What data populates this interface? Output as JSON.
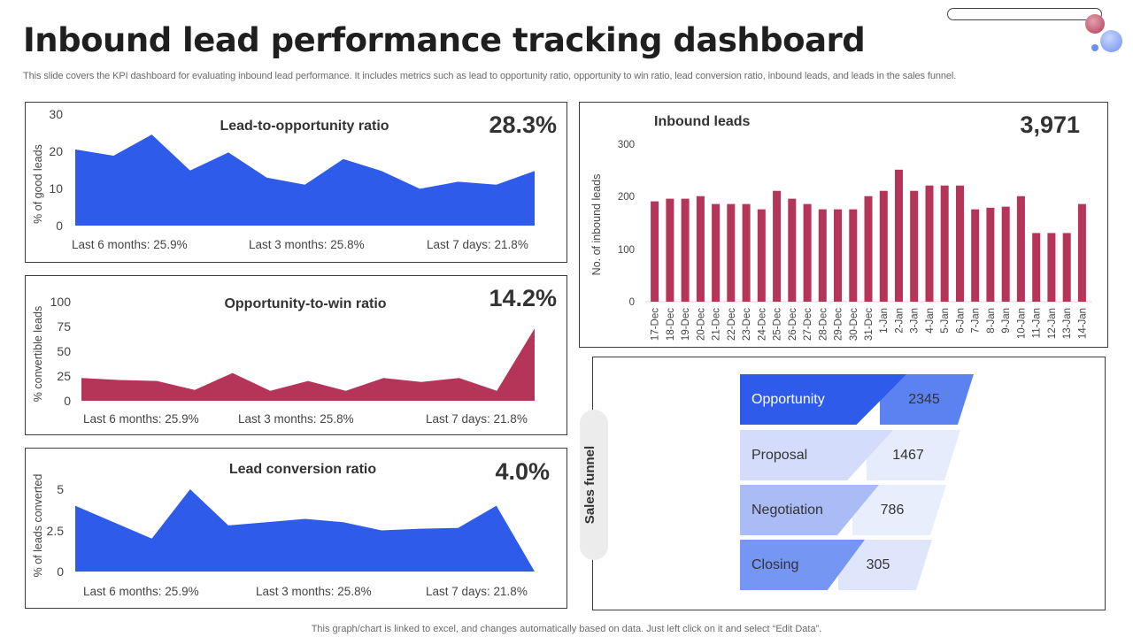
{
  "page": {
    "title": "Inbound lead performance tracking dashboard",
    "subtitle": "This slide covers the KPI dashboard for evaluating inbound lead performance. It includes metrics such as lead to opportunity ratio, opportunity to  win ratio, lead conversion ratio, inbound leads, and leads in the sales funnel.",
    "footer": "This graph/chart is linked to excel,  and changes automatically based on data. Just left click on it and select “Edit Data”."
  },
  "colors": {
    "blue": "#2e5bea",
    "crimson": "#b43557"
  },
  "chart_data": [
    {
      "id": "lead_to_opportunity",
      "type": "area",
      "title": "Lead-to-opportunity ratio",
      "kpi": "28.3%",
      "ylabel": "% of good leads",
      "ylim": [
        0,
        30
      ],
      "yticks": [
        "30",
        "20",
        "10",
        "0"
      ],
      "values": [
        20.5,
        18.8,
        24.5,
        14.8,
        19.7,
        12.9,
        11.0,
        17.9,
        14.7,
        9.9,
        11.8,
        11.0,
        14.7
      ],
      "color": "#2e5bea",
      "footnotes": [
        "Last 6 months: 25.9%",
        "Last 3 months: 25.8%",
        "Last 7 days: 21.8%"
      ]
    },
    {
      "id": "opportunity_to_win",
      "type": "area",
      "title": "Opportunity-to-win ratio",
      "kpi": "14.2%",
      "ylabel": "%  convertible  leads",
      "ylim": [
        0,
        100
      ],
      "yticks": [
        "100",
        "75",
        "50",
        "25",
        "0"
      ],
      "values": [
        23,
        21,
        20,
        11,
        28,
        10,
        20,
        10,
        23,
        19,
        23,
        10,
        73
      ],
      "color": "#b43557",
      "footnotes": [
        "Last 6 months: 25.9%",
        "Last 3 months: 25.8%",
        "Last 7 days: 21.8%"
      ]
    },
    {
      "id": "lead_conversion",
      "type": "area",
      "title": "Lead conversion ratio",
      "kpi": "4.0%",
      "ylabel": "% of leads converted",
      "ylim": [
        0,
        5
      ],
      "yticks": [
        "5",
        "2.5",
        "0"
      ],
      "values": [
        4.0,
        3.0,
        2.0,
        5.0,
        2.8,
        3.0,
        3.2,
        3.0,
        2.5,
        2.6,
        2.65,
        4.0,
        0
      ],
      "color": "#2e5bea",
      "footnotes": [
        "Last 6 months: 25.9%",
        "Last 3 months: 25.8%",
        "Last 7 days: 21.8%"
      ]
    },
    {
      "id": "inbound_leads",
      "type": "bar",
      "title": "Inbound leads",
      "kpi": "3,971",
      "ylabel": "No. of inbound leads",
      "ylim": [
        0,
        300
      ],
      "yticks": [
        "300",
        "200",
        "100",
        "0"
      ],
      "categories": [
        "17-Dec",
        "18-Dec",
        "19-Dec",
        "20-Dec",
        "21-Dec",
        "22-Dec",
        "23-Dec",
        "24-Dec",
        "25-Dec",
        "26-Dec",
        "27-Dec",
        "28-Dec",
        "29-Dec",
        "30-Dec",
        "31-Dec",
        "1-Jan",
        "2-Jan",
        "3-Jan",
        "4-Jan",
        "5-Jan",
        "6-Jan",
        "7-Jan",
        "8-Jan",
        "9-Jan",
        "10-Jan",
        "11-Jan",
        "12-Jan",
        "13-Jan",
        "14-Jan"
      ],
      "values": [
        190,
        195,
        195,
        200,
        185,
        185,
        185,
        175,
        210,
        195,
        185,
        175,
        175,
        175,
        200,
        210,
        250,
        210,
        220,
        220,
        220,
        175,
        178,
        180,
        200,
        130,
        130,
        130,
        185
      ],
      "color": "#b43557"
    }
  ],
  "funnel": {
    "tab_label": "Sales funnel",
    "stages": [
      {
        "label": "Opportunity",
        "value": "2345",
        "left_color": "#2e5bea",
        "right_color": "#5b82f0",
        "text_color": "#ffffff"
      },
      {
        "label": "Proposal",
        "value": "1467",
        "left_color": "#d3dcfa",
        "right_color": "#e7ecfc",
        "text_color": "#333333"
      },
      {
        "label": "Negotiation",
        "value": "786",
        "left_color": "#a9bcf6",
        "right_color": "#e9eefc",
        "text_color": "#333333"
      },
      {
        "label": "Closing",
        "value": "305",
        "left_color": "#7596f2",
        "right_color": "#dfe6fb",
        "text_color": "#333333"
      }
    ]
  }
}
